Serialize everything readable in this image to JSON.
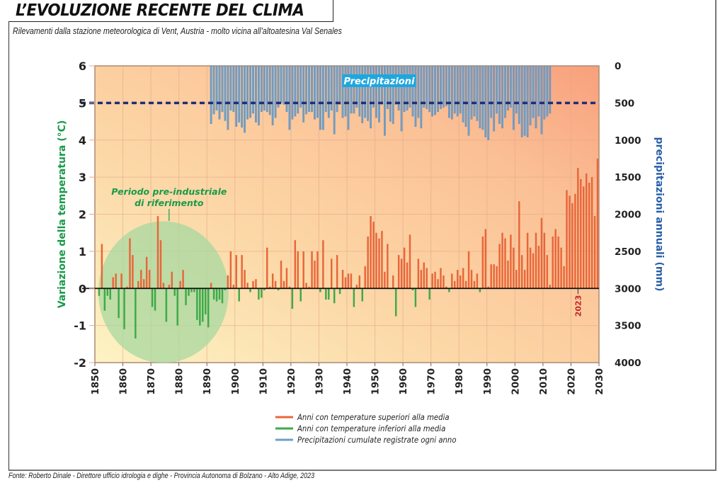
{
  "header": {
    "title": "L’EVOLUZIONE RECENTE DEL CLIMA",
    "subtitle": "Rilevamenti dalla stazione meteorologica di Vent, Austria - molto vicina all’altoatesina Val Senales"
  },
  "footer": {
    "source": "Fonte: Roberto Dinale - Direttore ufficio idrologia e dighe - Provincia Autonoma di Bolzano - Alto Adige, 2023"
  },
  "colors": {
    "above_avg": "#e8663a",
    "below_avg": "#3daa48",
    "precipitation": "#6f9ec8",
    "precip_label_bg": "#1ea7df",
    "reference_line": "#1f2d7a",
    "circle": "#a8d8a0",
    "axis_left_label": "#1a9a4a",
    "axis_right_label": "#2a5fa8",
    "year_marker": "#c0282b"
  },
  "chart_data": {
    "type": "bar",
    "title": "L’EVOLUZIONE RECENTE DEL CLIMA",
    "subtitle": "Rilevamenti dalla stazione meteorologica di Vent, Austria - molto vicina all’altoatesina Val Senales",
    "xlabel": "",
    "ylabel": "Variazione della temperatura (°C)",
    "y2label": "precipitazioni annuali (mm)",
    "xlim": [
      1850,
      2030
    ],
    "ylim": [
      -2,
      6
    ],
    "y2lim": [
      4000,
      0
    ],
    "y2_inverted": true,
    "grid": true,
    "x_ticks": [
      "1850",
      "1860",
      "1870",
      "1880",
      "1890",
      "1900",
      "1910",
      "1920",
      "1930",
      "1940",
      "1950",
      "1960",
      "1970",
      "1980",
      "1990",
      "2000",
      "2010",
      "2020",
      "2030"
    ],
    "y_ticks": [
      "-2",
      "-1",
      "0",
      "1",
      "2",
      "3",
      "4",
      "5",
      "6"
    ],
    "y2_ticks": [
      "4000",
      "3500",
      "3000",
      "2500",
      "2000",
      "1500",
      "1000",
      "500",
      "0"
    ],
    "reference_line": {
      "axis": "y",
      "value": 5,
      "y2_value": 500,
      "style": "dashed"
    },
    "annotations": [
      {
        "text": "Periodo pre-industriale",
        "text2": "di riferimento",
        "target": "1851-1898"
      },
      {
        "text": "Precipitazioni"
      },
      {
        "text": "2023",
        "year": 2023
      }
    ],
    "legend": {
      "position": "bottom-center",
      "entries": [
        {
          "label": "Anni con temperature superiori alla media",
          "color": "#e8663a"
        },
        {
          "label": "Anni con temperature inferiori alla media",
          "color": "#3daa48"
        },
        {
          "label": "Precipitazioni cumulate registrate ogni anno",
          "color": "#6f9ec8"
        }
      ]
    },
    "series": [
      {
        "name": "Variazione della temperatura (°C)",
        "start_year": 1851,
        "values": [
          -0.2,
          1.2,
          -0.6,
          -0.2,
          -0.3,
          0.3,
          0.4,
          -0.8,
          0.4,
          -1.1,
          0.05,
          1.35,
          0.9,
          -1.35,
          0.2,
          0.5,
          0.25,
          0.85,
          0.5,
          -0.5,
          -0.6,
          1.95,
          1.3,
          0.15,
          -0.9,
          0.1,
          0.45,
          -0.2,
          -1.0,
          0.2,
          0.5,
          -0.45,
          -0.2,
          -0.1,
          -0.1,
          -0.85,
          -1.0,
          -0.9,
          -0.7,
          -1.05,
          0.15,
          -0.3,
          -0.35,
          -0.3,
          -0.4,
          -0.05,
          0.35,
          1.0,
          0.1,
          0.9,
          -0.35,
          0.9,
          0.5,
          0.15,
          -0.1,
          0.2,
          0.25,
          -0.3,
          -0.25,
          -0.05,
          1.1,
          0.05,
          0.4,
          0.2,
          -0.05,
          0.75,
          0.2,
          0.55,
          0.05,
          -0.55,
          1.3,
          1.0,
          -0.35,
          1.0,
          0.15,
          0.05,
          1.0,
          0.75,
          1.0,
          -0.1,
          1.3,
          -0.3,
          -0.3,
          0.8,
          -0.4,
          0.9,
          -0.15,
          0.5,
          0.3,
          0.4,
          0.4,
          -0.5,
          0.1,
          0.35,
          -0.35,
          0.6,
          1.4,
          1.95,
          1.8,
          1.5,
          1.35,
          1.55,
          0.45,
          1.2,
          -0.02,
          0.35,
          -0.75,
          0.9,
          0.8,
          1.1,
          0.7,
          1.45,
          -0.05,
          -0.5,
          0.8,
          0.5,
          0.7,
          0.55,
          -0.3,
          0.4,
          0.45,
          0.25,
          0.55,
          0.35,
          0.05,
          -0.1,
          0.4,
          0.2,
          0.5,
          0.35,
          0.55,
          0.2,
          1.0,
          0.5,
          0.2,
          0.4,
          -0.1,
          1.4,
          1.6,
          0.05,
          0.65,
          0.65,
          0.6,
          1.2,
          1.5,
          1.35,
          0.75,
          1.45,
          1.1,
          0.5,
          2.35,
          0.9,
          0.5,
          1.5,
          1.1,
          0.95,
          1.5,
          1.15,
          1.9,
          1.5,
          0.9,
          0.1,
          1.4,
          1.6,
          1.4,
          1.1,
          0.6,
          2.65,
          2.5,
          2.3,
          2.55,
          3.25,
          2.95,
          2.75,
          3.1,
          2.85,
          3.0,
          1.95,
          3.5
        ]
      },
      {
        "name": "Precipitazioni cumulate (mm)",
        "start_year": 1891,
        "values": [
          780,
          650,
          600,
          720,
          620,
          740,
          860,
          600,
          620,
          820,
          760,
          830,
          900,
          720,
          700,
          640,
          760,
          800,
          620,
          600,
          620,
          660,
          800,
          700,
          560,
          500,
          520,
          620,
          860,
          720,
          680,
          640,
          560,
          760,
          650,
          620,
          620,
          720,
          700,
          860,
          860,
          620,
          700,
          600,
          920,
          620,
          520,
          700,
          680,
          860,
          640,
          640,
          560,
          680,
          770,
          700,
          740,
          840,
          560,
          700,
          760,
          520,
          940,
          580,
          750,
          780,
          520,
          600,
          880,
          620,
          600,
          560,
          680,
          820,
          700,
          840,
          560,
          580,
          620,
          680,
          660,
          620,
          580,
          560,
          540,
          700,
          720,
          640,
          680,
          640,
          760,
          820,
          940,
          720,
          680,
          740,
          840,
          860,
          960,
          1000,
          700,
          880,
          640,
          780,
          840,
          700,
          600,
          560,
          860,
          640,
          780,
          960,
          940,
          960,
          800,
          700,
          840,
          680,
          920,
          720,
          680,
          640
        ]
      }
    ]
  }
}
